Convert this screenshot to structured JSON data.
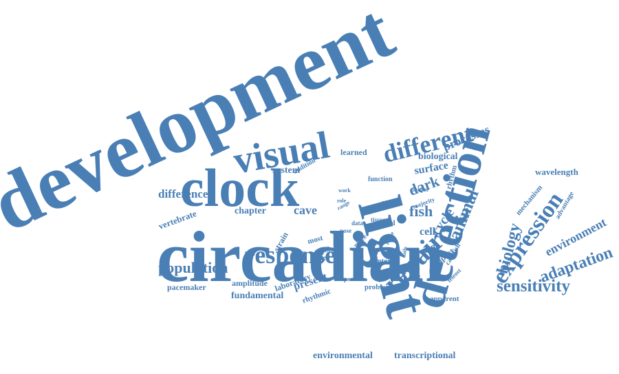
{
  "color": "#4a7fb5",
  "words": [
    {
      "text": "development",
      "size": 5
    },
    {
      "text": "circadian",
      "size": 5
    },
    {
      "text": "light",
      "size": 4
    },
    {
      "text": "clock",
      "size": 4
    },
    {
      "text": "detection",
      "size": 4
    },
    {
      "text": "visual",
      "size": 4
    },
    {
      "text": "different",
      "size": 3
    },
    {
      "text": "repair",
      "size": 3
    },
    {
      "text": "response",
      "size": 3
    },
    {
      "text": "expression",
      "size": 3
    },
    {
      "text": "sensitivity",
      "size": 3
    },
    {
      "text": "population",
      "size": 2
    },
    {
      "text": "biology",
      "size": 2
    },
    {
      "text": "animal",
      "size": 2
    },
    {
      "text": "adaptation",
      "size": 2
    },
    {
      "text": "environment",
      "size": 2
    },
    {
      "text": "fish",
      "size": 2
    },
    {
      "text": "difference",
      "size": 2
    },
    {
      "text": "processes",
      "size": 2
    },
    {
      "text": "cave",
      "size": 2
    },
    {
      "text": "dark",
      "size": 2
    },
    {
      "text": "cycle",
      "size": 2
    },
    {
      "text": "surface",
      "size": 2
    },
    {
      "text": "biological",
      "size": 2
    },
    {
      "text": "system",
      "size": 1
    },
    {
      "text": "chapter",
      "size": 1
    },
    {
      "text": "vertebrate",
      "size": 1
    },
    {
      "text": "cell",
      "size": 1
    },
    {
      "text": "strain",
      "size": 1
    },
    {
      "text": "present",
      "size": 1
    },
    {
      "text": "fundamental",
      "size": 1
    },
    {
      "text": "pacemaker",
      "size": 1
    },
    {
      "text": "amplitude",
      "size": 1
    },
    {
      "text": "rhythmic",
      "size": 1
    },
    {
      "text": "laboratory",
      "size": 1
    },
    {
      "text": "environmental",
      "size": 1
    },
    {
      "text": "transcriptional",
      "size": 1
    },
    {
      "text": "wavelength",
      "size": 1
    },
    {
      "text": "mechanism",
      "size": 1
    },
    {
      "text": "advantage",
      "size": 1
    },
    {
      "text": "learned",
      "size": 1
    },
    {
      "text": "rhythm",
      "size": 1
    },
    {
      "text": "function",
      "size": 1
    },
    {
      "text": "unique",
      "size": 1
    },
    {
      "text": "majority",
      "size": 1
    },
    {
      "text": "study",
      "size": 1
    },
    {
      "text": "model",
      "size": 1
    },
    {
      "text": "many",
      "size": 1
    },
    {
      "text": "impact",
      "size": 1
    },
    {
      "text": "cavefish",
      "size": 1
    },
    {
      "text": "context",
      "size": 1
    },
    {
      "text": "problem",
      "size": 1
    },
    {
      "text": "apparent",
      "size": 1
    },
    {
      "text": "most",
      "size": 1
    },
    {
      "text": "critical",
      "size": 1
    },
    {
      "text": "timing",
      "size": 1
    },
    {
      "text": "addition",
      "size": 1
    },
    {
      "text": "have",
      "size": 1
    },
    {
      "text": "place",
      "size": 1
    },
    {
      "text": "tissue",
      "size": 1
    },
    {
      "text": "data",
      "size": 1
    },
    {
      "text": "aspect",
      "size": 1
    },
    {
      "text": "role",
      "size": 1
    },
    {
      "text": "work",
      "size": 1
    },
    {
      "text": "teleost",
      "size": 1
    },
    {
      "text": "range",
      "size": 1
    },
    {
      "text": "pose",
      "size": 1
    },
    {
      "text": "phase",
      "size": 1
    },
    {
      "text": "daily",
      "size": 1
    }
  ]
}
